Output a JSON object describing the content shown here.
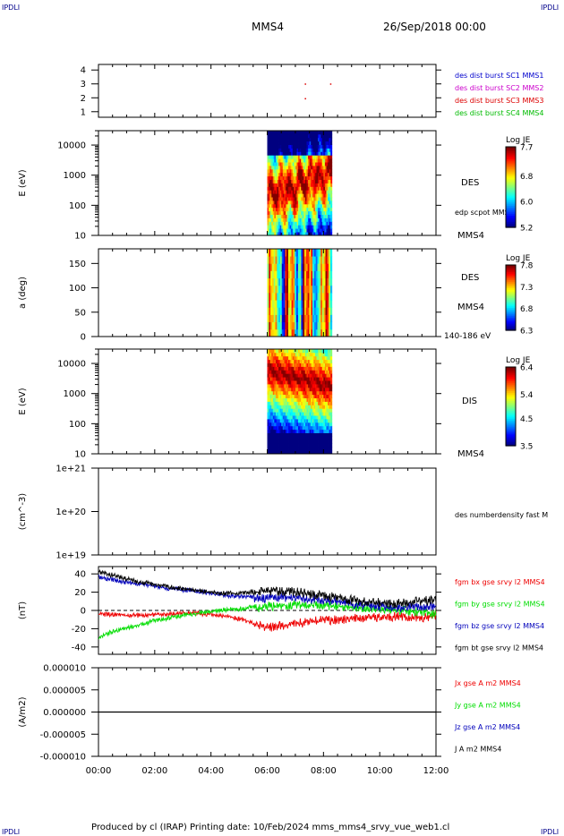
{
  "corner_tag": "IPDLI",
  "header": {
    "spacecraft": "MMS4",
    "date": "26/Sep/2018 00:00"
  },
  "footer": "Produced by cl (IRAP)   Printing date: 10/Feb/2024   mms_mms4_srvy_vue_web1.cl",
  "colors": {
    "mms1": "#0000cc",
    "mms2": "#cc00cc",
    "mms3": "#dd0000",
    "mms4": "#00bb00",
    "bx": "#ee0000",
    "by": "#00dd00",
    "bz": "#0000bb",
    "bt": "#000000"
  },
  "chart_data": [
    {
      "type": "scatter",
      "panel": "burst",
      "yticks": [
        "4",
        "3",
        "2",
        "1"
      ],
      "ylim": [
        0.6,
        4.4
      ],
      "xlim": [
        0,
        12
      ],
      "legend": [
        {
          "text": "des dist burst SC1 MMS1",
          "color": "#0000cc"
        },
        {
          "text": "des dist burst SC2 MMS2",
          "color": "#cc00cc"
        },
        {
          "text": "des dist burst SC3 MMS3",
          "color": "#dd0000"
        },
        {
          "text": "des dist burst SC4 MMS4",
          "color": "#00bb00"
        }
      ],
      "points": [
        {
          "x": 7.35,
          "y": 3.0
        },
        {
          "x": 8.25,
          "y": 3.0
        },
        {
          "x": 7.35,
          "y": 1.95
        }
      ]
    },
    {
      "type": "heatmap",
      "panel": "des_energy",
      "ylabel": "E (eV)",
      "yscale": "log",
      "ylim": [
        10,
        30000
      ],
      "yticks": [
        "10000",
        "1000",
        "100",
        "10"
      ],
      "xlim": [
        0,
        12
      ],
      "data_x_range": [
        6.0,
        8.3
      ],
      "instrument": "DES",
      "side_note": "edp scpot MMS4",
      "spacecraft": "MMS4",
      "colorbar": {
        "title": "Log JE",
        "ticks": [
          "7.7",
          "6.8",
          "6.0",
          "5.2"
        ],
        "min": 5.2,
        "max": 7.7
      }
    },
    {
      "type": "heatmap",
      "panel": "des_pitch",
      "ylabel": "a (deg)",
      "ylim": [
        0,
        180
      ],
      "yticks": [
        "150",
        "100",
        "50",
        "0"
      ],
      "xlim": [
        0,
        12
      ],
      "data_x_range": [
        6.0,
        8.3
      ],
      "instrument": "DES",
      "spacecraft": "MMS4",
      "energy_range": "140-186 eV",
      "colorbar": {
        "title": "Log JE",
        "ticks": [
          "7.8",
          "7.3",
          "6.8",
          "6.3"
        ],
        "min": 6.3,
        "max": 7.8
      }
    },
    {
      "type": "heatmap",
      "panel": "dis_energy",
      "ylabel": "E (eV)",
      "yscale": "log",
      "ylim": [
        10,
        30000
      ],
      "yticks": [
        "10000",
        "1000",
        "100",
        "10"
      ],
      "xlim": [
        0,
        12
      ],
      "data_x_range": [
        6.0,
        8.3
      ],
      "instrument": "DIS",
      "spacecraft": "MMS4",
      "colorbar": {
        "title": "Log JE",
        "ticks": [
          "6.4",
          "5.4",
          "4.5",
          "3.5"
        ],
        "min": 3.5,
        "max": 6.4
      }
    },
    {
      "type": "line",
      "panel": "density",
      "ylabel": "(cm^-3)",
      "yscale": "log",
      "yticks": [
        "1e+21",
        "1e+20",
        "1e+19"
      ],
      "ylim": [
        1e+19,
        1e+21
      ],
      "xlim": [
        0,
        12
      ],
      "legend": [
        {
          "text": "des numberdensity fast M",
          "color": "#000000"
        }
      ],
      "series": []
    },
    {
      "type": "line",
      "panel": "fgm",
      "ylabel": "(nT)",
      "ylim": [
        -48,
        48
      ],
      "yticks": [
        "40",
        "20",
        "0",
        "-20",
        "-40"
      ],
      "xlim": [
        0,
        12
      ],
      "legend": [
        {
          "text": "fgm bx gse srvy l2 MMS4",
          "color": "#ee0000"
        },
        {
          "text": "fgm by gse srvy l2 MMS4",
          "color": "#00dd00"
        },
        {
          "text": "fgm bz gse srvy l2 MMS4",
          "color": "#0000bb"
        },
        {
          "text": "fgm bt gse srvy l2 MMS4",
          "color": "#000000"
        }
      ],
      "series": [
        {
          "name": "fgm bx gse srvy l2 MMS4",
          "color": "#ee0000",
          "x": [
            0,
            0.5,
            1,
            1.5,
            2,
            2.5,
            3,
            3.5,
            4,
            4.5,
            5,
            5.5,
            6,
            6.5,
            7,
            7.5,
            8,
            8.5,
            9,
            9.5,
            10,
            10.5,
            11,
            11.5,
            12
          ],
          "values": [
            -3,
            -3,
            -4,
            -4,
            -3,
            -3,
            -2,
            -2,
            -3,
            -5,
            -8,
            -12,
            -16,
            -14,
            -12,
            -10,
            -8,
            -8,
            -6,
            -5,
            -5,
            -4,
            -5,
            -6,
            -2
          ]
        },
        {
          "name": "fgm by gse srvy l2 MMS4",
          "color": "#00dd00",
          "x": [
            0,
            0.5,
            1,
            1.5,
            2,
            2.5,
            3,
            3.5,
            4,
            4.5,
            5,
            5.5,
            6,
            6.5,
            7,
            7.5,
            8,
            8.5,
            9,
            9.5,
            10,
            10.5,
            11,
            11.5,
            12
          ],
          "values": [
            -28,
            -22,
            -18,
            -14,
            -10,
            -7,
            -4,
            -2,
            0,
            2,
            3,
            5,
            7,
            8,
            9,
            8,
            8,
            7,
            6,
            5,
            4,
            3,
            2,
            1,
            -2
          ]
        },
        {
          "name": "fgm bz gse srvy l2 MMS4",
          "color": "#0000bb",
          "x": [
            0,
            0.5,
            1,
            1.5,
            2,
            2.5,
            3,
            3.5,
            4,
            4.5,
            5,
            5.5,
            6,
            6.5,
            7,
            7.5,
            8,
            8.5,
            9,
            9.5,
            10,
            10.5,
            11,
            11.5,
            12
          ],
          "values": [
            38,
            35,
            32,
            30,
            28,
            25,
            24,
            22,
            20,
            18,
            17,
            16,
            16,
            17,
            17,
            15,
            14,
            13,
            10,
            8,
            7,
            6,
            6,
            7,
            8
          ]
        },
        {
          "name": "fgm bt gse srvy l2 MMS4",
          "color": "#000000",
          "x": [
            0,
            0.5,
            1,
            1.5,
            2,
            2.5,
            3,
            3.5,
            4,
            4.5,
            5,
            5.5,
            6,
            6.5,
            7,
            7.5,
            8,
            8.5,
            9,
            9.5,
            10,
            10.5,
            11,
            11.5,
            12
          ],
          "values": [
            44,
            40,
            36,
            32,
            30,
            27,
            25,
            23,
            21,
            20,
            20,
            22,
            24,
            24,
            23,
            21,
            19,
            17,
            14,
            12,
            11,
            10,
            11,
            13,
            14
          ]
        }
      ]
    },
    {
      "type": "line",
      "panel": "current",
      "ylabel": "(A/m2)",
      "ylim": [
        -1e-05,
        1e-05
      ],
      "yticks": [
        "0.000010",
        "0.000005",
        "0.000000",
        "-0.000005",
        "-0.000010"
      ],
      "xlim": [
        0,
        12
      ],
      "xticks": [
        "00:00",
        "02:00",
        "04:00",
        "06:00",
        "08:00",
        "10:00",
        "12:00"
      ],
      "legend": [
        {
          "text": "Jx gse A m2 MMS4",
          "color": "#ee0000"
        },
        {
          "text": "Jy gse A m2 MMS4",
          "color": "#00dd00"
        },
        {
          "text": "Jz gse A m2 MMS4",
          "color": "#0000bb"
        },
        {
          "text": "J A m2 MMS4",
          "color": "#000000"
        }
      ],
      "series": [
        {
          "name": "J A m2 MMS4",
          "color": "#000000",
          "x": [
            0,
            12
          ],
          "values": [
            0,
            0
          ]
        }
      ]
    }
  ]
}
